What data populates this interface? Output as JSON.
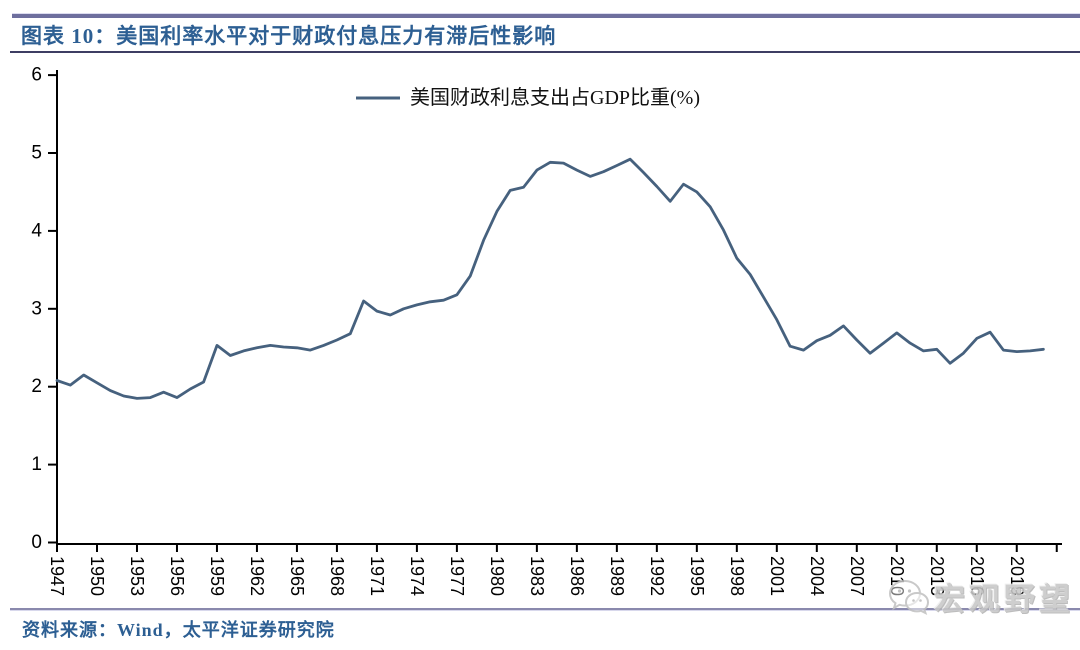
{
  "header": {
    "title": "图表 10：美国利率水平对于财政付息压力有滞后性影响"
  },
  "footer": {
    "source": "资料来源：Wind，太平洋证券研究院"
  },
  "watermark": {
    "icon": "wechat-icon",
    "text": "宏观野望"
  },
  "colors": {
    "line": "#46617e",
    "title_text": "#2d5f93",
    "rule_top": "#6e6f9e",
    "rule_dark": "#3d3d63",
    "rule_source": "#8a89ad",
    "axis": "#000000",
    "watermark": "#c8c8c8"
  },
  "chart_data": {
    "type": "line",
    "title": "",
    "xlabel": "",
    "ylabel": "",
    "ylim": [
      0,
      6
    ],
    "yticks": [
      0,
      1,
      2,
      3,
      4,
      5,
      6
    ],
    "xtick_start": 1947,
    "xtick_end": 2022,
    "xtick_step": 3,
    "xtick_label_end": 2019,
    "grid": false,
    "legend": {
      "position": "top-center",
      "entries": [
        "美国财政利息支出占GDP比重(%)"
      ]
    },
    "series": [
      {
        "name": "美国财政利息支出占GDP比重(%)",
        "color": "#46617e",
        "x": [
          1947,
          1948,
          1949,
          1950,
          1951,
          1952,
          1953,
          1954,
          1955,
          1956,
          1957,
          1958,
          1959,
          1960,
          1961,
          1962,
          1963,
          1964,
          1965,
          1966,
          1967,
          1968,
          1969,
          1970,
          1971,
          1972,
          1973,
          1974,
          1975,
          1976,
          1977,
          1978,
          1979,
          1980,
          1981,
          1982,
          1983,
          1984,
          1985,
          1986,
          1987,
          1988,
          1989,
          1990,
          1991,
          1992,
          1993,
          1994,
          1995,
          1996,
          1997,
          1998,
          1999,
          2000,
          2001,
          2002,
          2003,
          2004,
          2005,
          2006,
          2007,
          2008,
          2009,
          2010,
          2011,
          2012,
          2013,
          2014,
          2015,
          2016,
          2017,
          2018,
          2019,
          2020,
          2021
        ],
        "values": [
          2.08,
          2.02,
          2.15,
          2.05,
          1.95,
          1.88,
          1.85,
          1.86,
          1.93,
          1.86,
          1.97,
          2.06,
          2.53,
          2.4,
          2.46,
          2.5,
          2.53,
          2.51,
          2.5,
          2.47,
          2.53,
          2.6,
          2.68,
          3.1,
          2.97,
          2.92,
          3.0,
          3.05,
          3.09,
          3.11,
          3.18,
          3.42,
          3.88,
          4.25,
          4.52,
          4.56,
          4.78,
          4.88,
          4.87,
          4.78,
          4.7,
          4.76,
          4.84,
          4.92,
          4.75,
          4.57,
          4.38,
          4.6,
          4.5,
          4.31,
          4.01,
          3.65,
          3.44,
          3.15,
          2.86,
          2.52,
          2.47,
          2.59,
          2.66,
          2.78,
          2.6,
          2.43,
          2.56,
          2.69,
          2.56,
          2.46,
          2.48,
          2.3,
          2.43,
          2.62,
          2.7,
          2.47,
          2.45,
          2.46,
          2.48
        ]
      }
    ]
  }
}
